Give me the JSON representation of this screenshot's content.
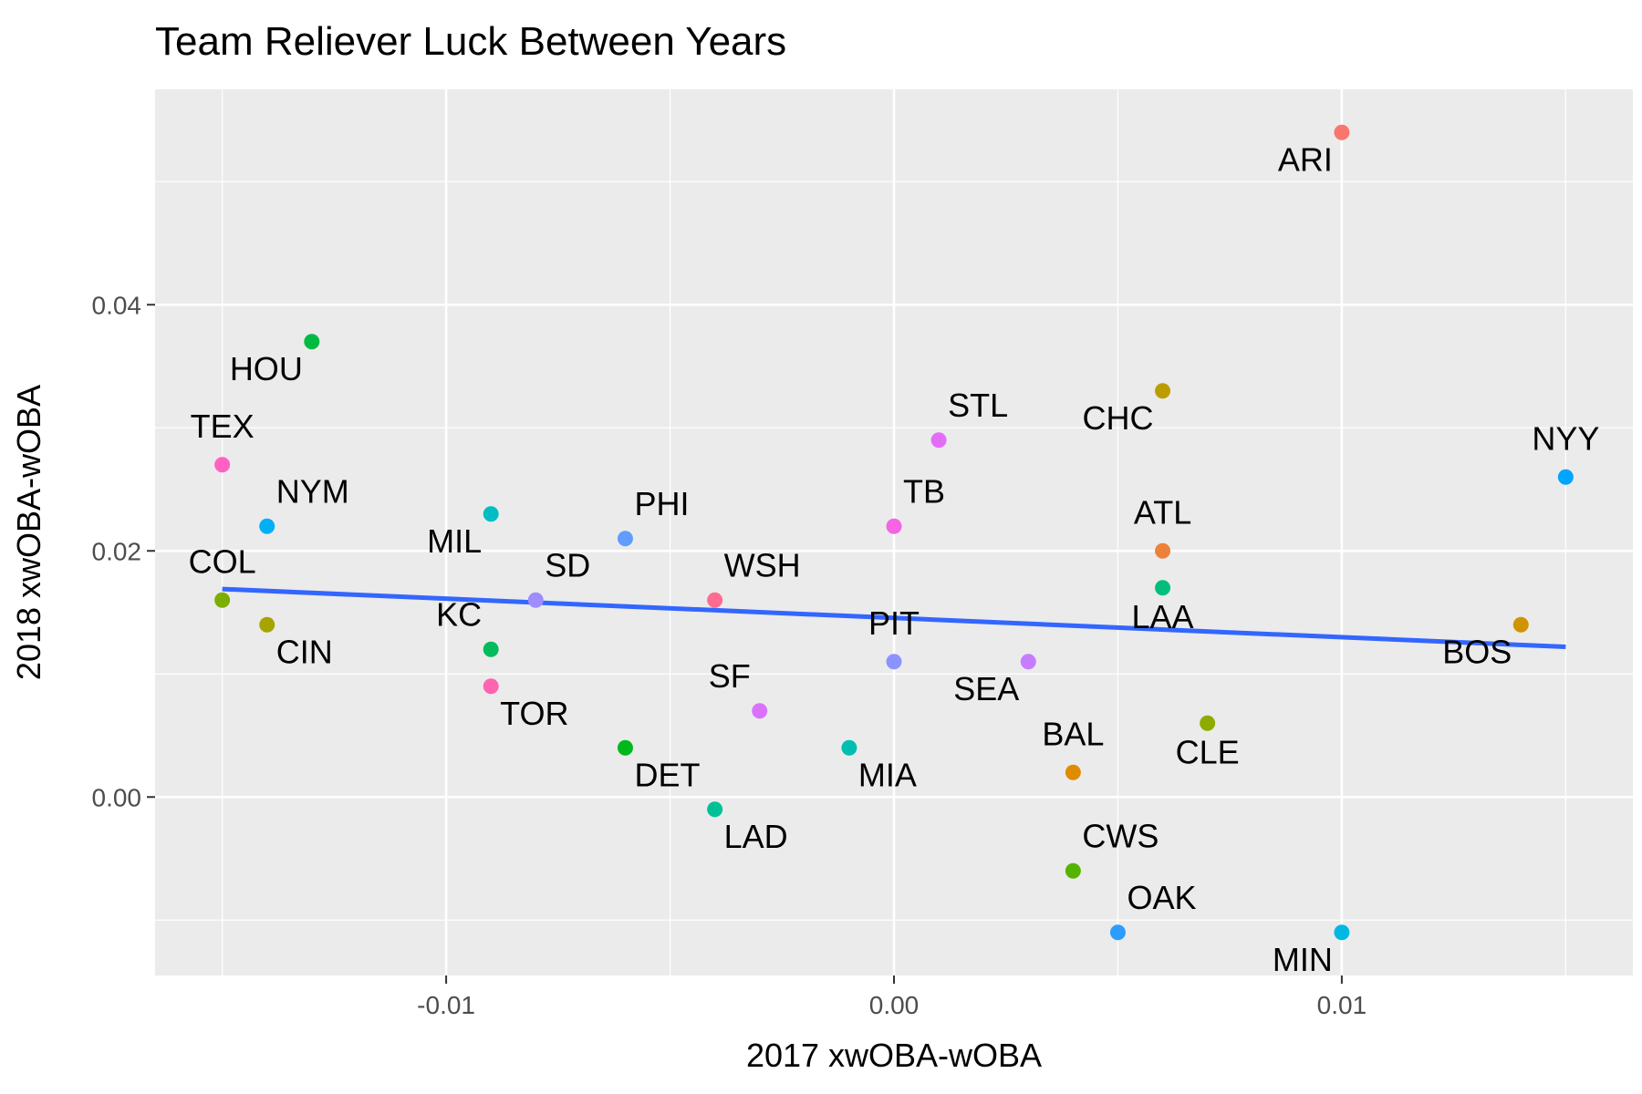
{
  "chart_data": {
    "type": "scatter",
    "title": "Team Reliever Luck Between Years",
    "xlabel": "2017 xwOBA-wOBA",
    "ylabel": "2018 xwOBA-wOBA",
    "xlim": [
      -0.0165,
      0.0165
    ],
    "ylim": [
      -0.0145,
      0.0575
    ],
    "x_ticks": [
      -0.01,
      0.0,
      0.01
    ],
    "x_tick_labels": [
      "-0.01",
      "0.00",
      "0.01"
    ],
    "y_ticks": [
      0.0,
      0.02,
      0.04
    ],
    "y_tick_labels": [
      "0.00",
      "0.02",
      "0.04"
    ],
    "grid": true,
    "legend": "none",
    "points": [
      {
        "label": "ARI",
        "x": 0.01,
        "y": 0.054,
        "color": "#F8766D",
        "label_pos": "below-left"
      },
      {
        "label": "ATL",
        "x": 0.006,
        "y": 0.02,
        "color": "#EC8239",
        "label_pos": "above"
      },
      {
        "label": "BAL",
        "x": 0.004,
        "y": 0.002,
        "color": "#DE8C00",
        "label_pos": "above"
      },
      {
        "label": "BOS",
        "x": 0.014,
        "y": 0.014,
        "color": "#CF9400",
        "label_pos": "below-left"
      },
      {
        "label": "CHC",
        "x": 0.006,
        "y": 0.033,
        "color": "#BB9D00",
        "label_pos": "below-left"
      },
      {
        "label": "CIN",
        "x": -0.014,
        "y": 0.014,
        "color": "#A5A400",
        "label_pos": "below-right"
      },
      {
        "label": "CLE",
        "x": 0.007,
        "y": 0.006,
        "color": "#8EAB00",
        "label_pos": "below"
      },
      {
        "label": "COL",
        "x": -0.015,
        "y": 0.016,
        "color": "#7CAE00",
        "label_pos": "above"
      },
      {
        "label": "CWS",
        "x": 0.004,
        "y": -0.006,
        "color": "#55B400",
        "label_pos": "above-right"
      },
      {
        "label": "DET",
        "x": -0.006,
        "y": 0.004,
        "color": "#00B81B",
        "label_pos": "below-right"
      },
      {
        "label": "HOU",
        "x": -0.013,
        "y": 0.037,
        "color": "#00BA42",
        "label_pos": "below-left"
      },
      {
        "label": "KC",
        "x": -0.009,
        "y": 0.012,
        "color": "#00BC5D",
        "label_pos": "above-left"
      },
      {
        "label": "LAA",
        "x": 0.006,
        "y": 0.017,
        "color": "#00BF7D",
        "label_pos": "below"
      },
      {
        "label": "LAD",
        "x": -0.004,
        "y": -0.001,
        "color": "#00C098",
        "label_pos": "below-right"
      },
      {
        "label": "MIA",
        "x": -0.001,
        "y": 0.004,
        "color": "#00BFB1",
        "label_pos": "below-right"
      },
      {
        "label": "MIL",
        "x": -0.009,
        "y": 0.023,
        "color": "#00BDC4",
        "label_pos": "below-left"
      },
      {
        "label": "MIN",
        "x": 0.01,
        "y": -0.011,
        "color": "#00B9E3",
        "label_pos": "below-left"
      },
      {
        "label": "NYM",
        "x": -0.014,
        "y": 0.022,
        "color": "#00B0F6",
        "label_pos": "above-right"
      },
      {
        "label": "NYY",
        "x": 0.015,
        "y": 0.026,
        "color": "#00A5FF",
        "label_pos": "above"
      },
      {
        "label": "OAK",
        "x": 0.005,
        "y": -0.011,
        "color": "#2C9CFF",
        "label_pos": "above-right"
      },
      {
        "label": "PHI",
        "x": -0.006,
        "y": 0.021,
        "color": "#619CFF",
        "label_pos": "above-right"
      },
      {
        "label": "PIT",
        "x": 0.0,
        "y": 0.011,
        "color": "#8B93FF",
        "label_pos": "above"
      },
      {
        "label": "SD",
        "x": -0.008,
        "y": 0.016,
        "color": "#9F8CFF",
        "label_pos": "above-right"
      },
      {
        "label": "SEA",
        "x": 0.003,
        "y": 0.011,
        "color": "#C77CFF",
        "label_pos": "below-left"
      },
      {
        "label": "SF",
        "x": -0.003,
        "y": 0.007,
        "color": "#DB72FB",
        "label_pos": "above-left"
      },
      {
        "label": "STL",
        "x": 0.001,
        "y": 0.029,
        "color": "#E36EF6",
        "label_pos": "above-right"
      },
      {
        "label": "TB",
        "x": 0.0,
        "y": 0.022,
        "color": "#F564E3",
        "label_pos": "above-right"
      },
      {
        "label": "TEX",
        "x": -0.015,
        "y": 0.027,
        "color": "#FF61C3",
        "label_pos": "above"
      },
      {
        "label": "TOR",
        "x": -0.009,
        "y": 0.009,
        "color": "#FF64B0",
        "label_pos": "below-right"
      },
      {
        "label": "WSH",
        "x": -0.004,
        "y": 0.016,
        "color": "#FF6C91",
        "label_pos": "above-right"
      }
    ],
    "fit_line": {
      "type": "linear",
      "color": "#3366FF",
      "x": [
        -0.015,
        0.015
      ],
      "y": [
        0.0169,
        0.0122
      ]
    }
  }
}
